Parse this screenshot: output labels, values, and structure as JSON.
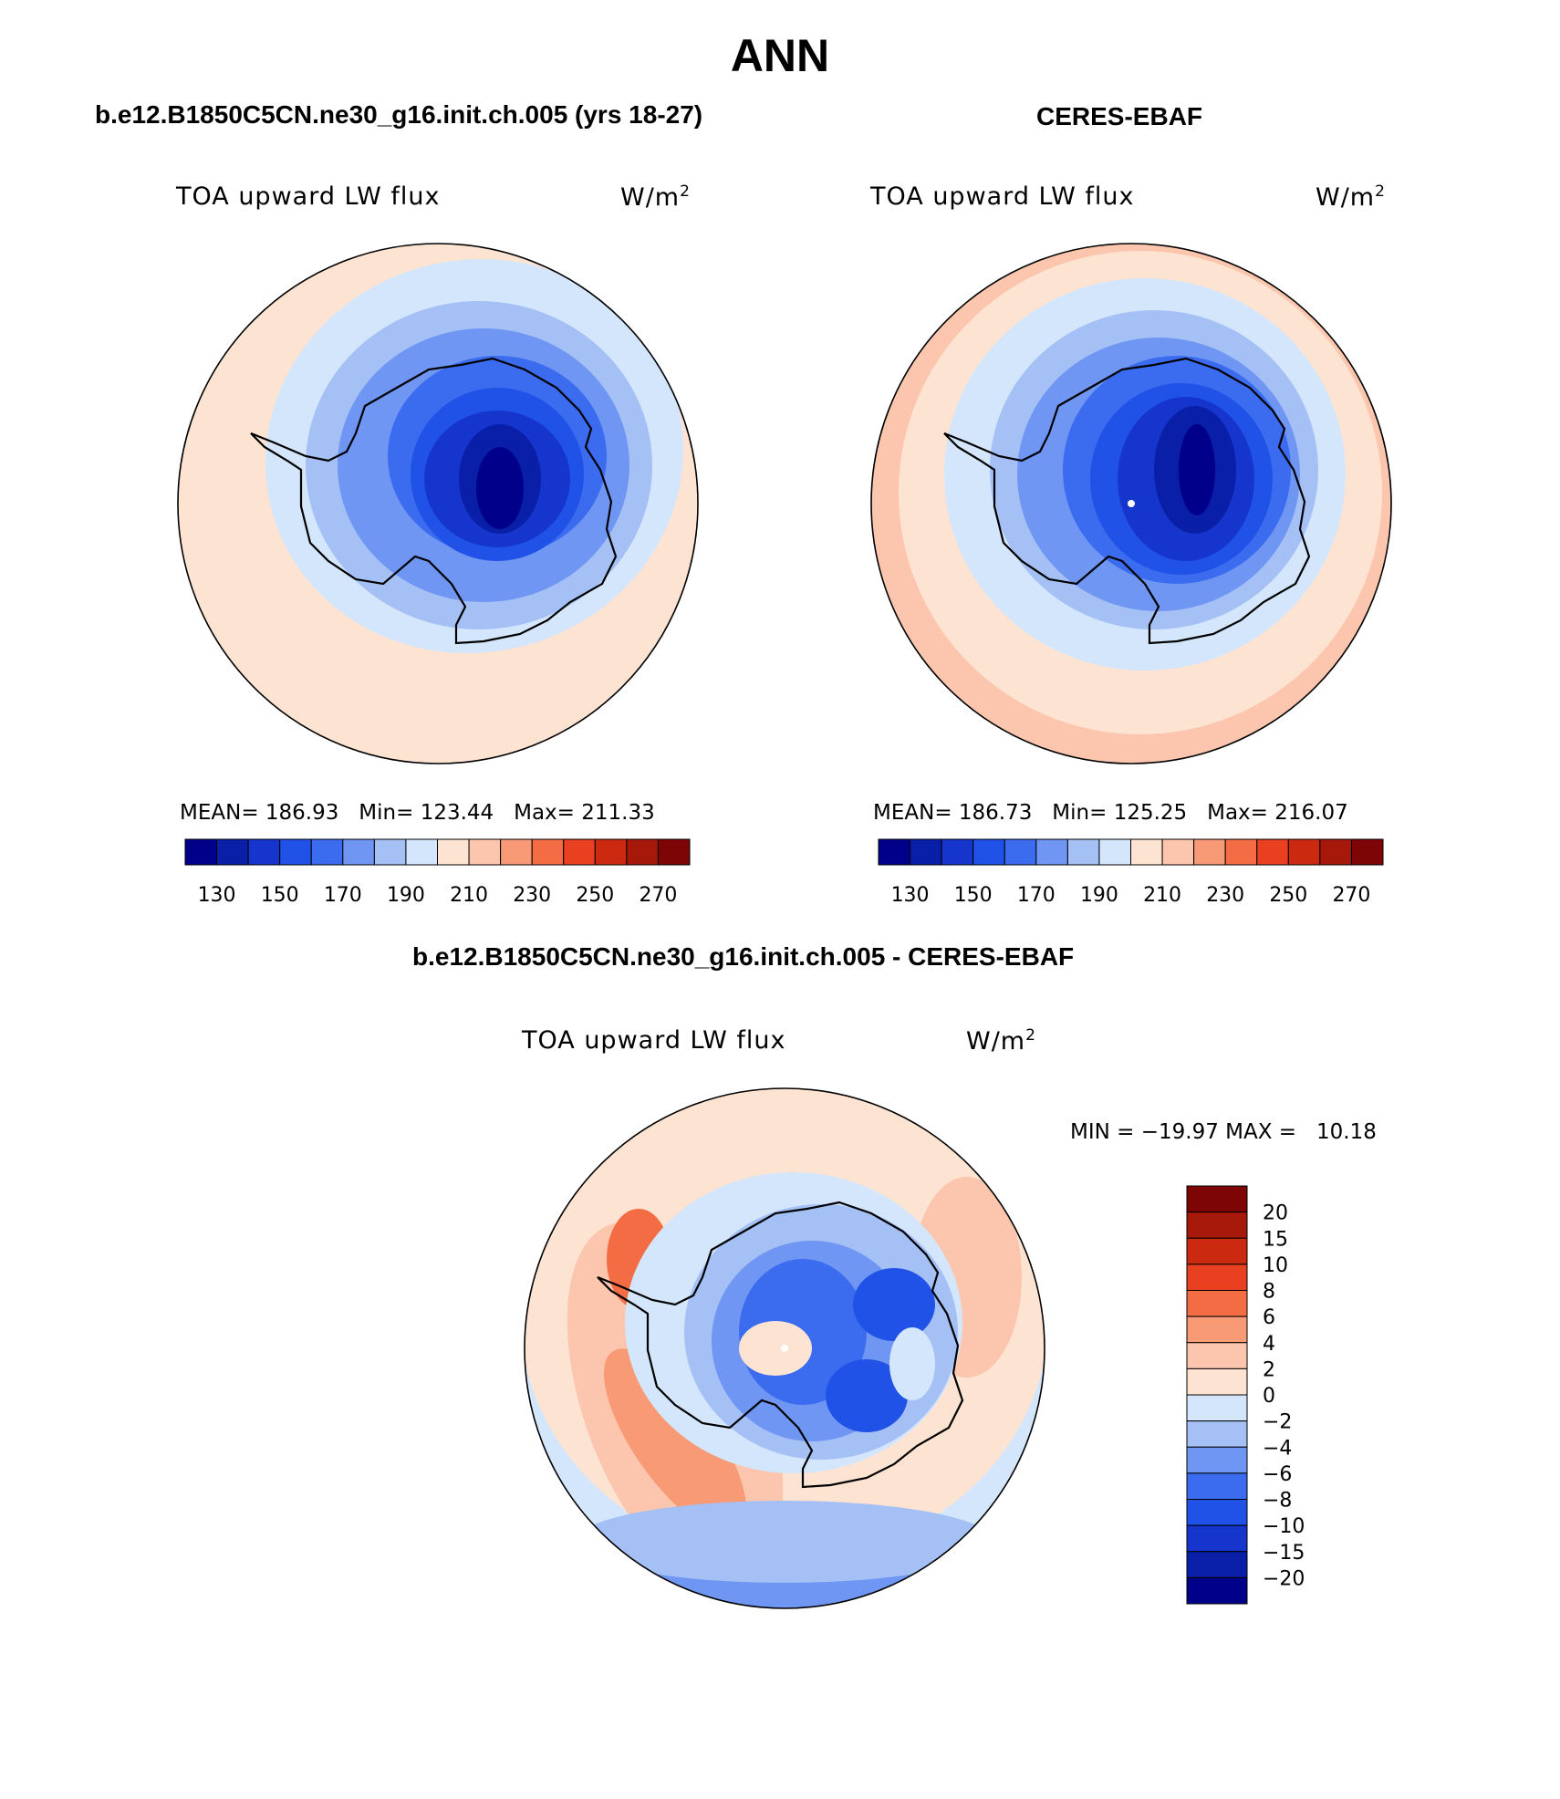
{
  "figure": {
    "title": "ANN",
    "diff_title": "b.e12.B1850C5CN.ne30_g16.init.ch.005 - CERES-EBAF"
  },
  "panels": [
    {
      "case_title": "b.e12.B1850C5CN.ne30_g16.init.ch.005 (yrs 18-27)",
      "variable": "TOA upward LW flux",
      "units_base": "W/m",
      "units_exp": "2",
      "stats": "MEAN= 186.93   Min= 123.44   Max= 211.33",
      "dark_core_level": 0
    },
    {
      "case_title": "CERES-EBAF",
      "variable": "TOA upward LW flux",
      "units_base": "W/m",
      "units_exp": "2",
      "stats": "MEAN= 186.73   Min= 125.25   Max= 216.07",
      "dark_core_level": 1
    }
  ],
  "diff_panel": {
    "variable": "TOA upward LW flux",
    "units_base": "W/m",
    "units_exp": "2",
    "stats": "MIN = −19.97 MAX =   10.18"
  },
  "colorbar_abs": {
    "colors": [
      "#00008b",
      "#0a1fa8",
      "#1535cc",
      "#2052e8",
      "#3b6cef",
      "#6f96f2",
      "#a5c0f5",
      "#d4e6fb",
      "#fde3d2",
      "#fbc6ad",
      "#f89a75",
      "#f46c43",
      "#e94021",
      "#cc2a10",
      "#a5180a",
      "#7d0505"
    ],
    "labels": [
      "130",
      "150",
      "170",
      "190",
      "210",
      "230",
      "250",
      "270"
    ]
  },
  "colorbar_diff": {
    "colors_top_to_bottom": [
      "#7d0505",
      "#a5180a",
      "#cc2a10",
      "#e94021",
      "#f46c43",
      "#f89a75",
      "#fbc6ad",
      "#fde3d2",
      "#d4e6fb",
      "#a5c0f5",
      "#6f96f2",
      "#3b6cef",
      "#2052e8",
      "#1535cc",
      "#0a1fa8",
      "#00008b"
    ],
    "labels": [
      "20",
      "15",
      "10",
      "8",
      "6",
      "4",
      "2",
      "0",
      "−2",
      "−4",
      "−6",
      "−8",
      "−10",
      "−15",
      "−20"
    ]
  }
}
